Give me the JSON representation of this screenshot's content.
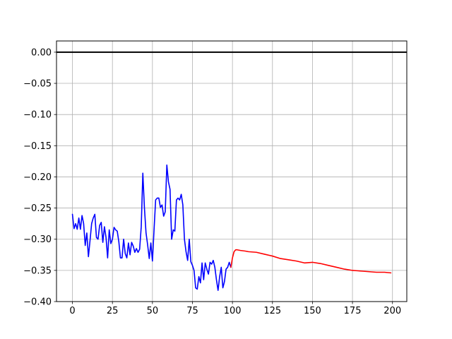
{
  "chart_data": {
    "type": "line",
    "title": "",
    "xlabel": "",
    "ylabel": "",
    "xlim": [
      -9.95,
      208.95
    ],
    "ylim": [
      -0.4,
      0.018
    ],
    "xticks": [
      0,
      25,
      50,
      75,
      100,
      125,
      150,
      175,
      200
    ],
    "xtick_labels": [
      "0",
      "25",
      "50",
      "75",
      "100",
      "125",
      "150",
      "175",
      "200"
    ],
    "yticks": [
      0.0,
      -0.05,
      -0.1,
      -0.15,
      -0.2,
      -0.25,
      -0.3,
      -0.35,
      -0.4
    ],
    "ytick_labels": [
      "0.00",
      "−0.05",
      "−0.10",
      "−0.15",
      "−0.20",
      "−0.25",
      "−0.30",
      "−0.35",
      "−0.40"
    ],
    "grid": true,
    "legend": null,
    "reference_line": {
      "y": 0,
      "color": "#000000"
    },
    "series": [
      {
        "color": "#0000ff",
        "x": [
          0,
          1,
          2,
          3,
          4,
          5,
          6,
          7,
          8,
          9,
          10,
          11,
          12,
          13,
          14,
          15,
          16,
          17,
          18,
          19,
          20,
          21,
          22,
          23,
          24,
          25,
          26,
          27,
          28,
          29,
          30,
          31,
          32,
          33,
          34,
          35,
          36,
          37,
          38,
          39,
          40,
          41,
          42,
          43,
          44,
          45,
          46,
          47,
          48,
          49,
          50,
          51,
          52,
          53,
          54,
          55,
          56,
          57,
          58,
          59,
          60,
          61,
          62,
          63,
          64,
          65,
          66,
          67,
          68,
          69,
          70,
          71,
          72,
          73,
          74,
          75,
          76,
          77,
          78,
          79,
          80,
          81,
          82,
          83,
          84,
          85,
          86,
          87,
          88,
          89,
          90,
          91,
          92,
          93,
          94,
          95,
          96,
          97,
          98,
          99
        ],
        "y": [
          -0.26,
          -0.283,
          -0.275,
          -0.284,
          -0.266,
          -0.284,
          -0.262,
          -0.275,
          -0.31,
          -0.29,
          -0.328,
          -0.302,
          -0.275,
          -0.266,
          -0.26,
          -0.297,
          -0.3,
          -0.278,
          -0.273,
          -0.305,
          -0.28,
          -0.297,
          -0.33,
          -0.285,
          -0.307,
          -0.3,
          -0.281,
          -0.285,
          -0.287,
          -0.304,
          -0.33,
          -0.33,
          -0.3,
          -0.323,
          -0.33,
          -0.306,
          -0.325,
          -0.305,
          -0.311,
          -0.321,
          -0.315,
          -0.321,
          -0.316,
          -0.28,
          -0.194,
          -0.25,
          -0.29,
          -0.309,
          -0.331,
          -0.306,
          -0.335,
          -0.285,
          -0.237,
          -0.234,
          -0.234,
          -0.249,
          -0.245,
          -0.263,
          -0.256,
          -0.181,
          -0.208,
          -0.22,
          -0.3,
          -0.285,
          -0.287,
          -0.237,
          -0.234,
          -0.237,
          -0.228,
          -0.245,
          -0.3,
          -0.32,
          -0.334,
          -0.3,
          -0.336,
          -0.342,
          -0.35,
          -0.378,
          -0.38,
          -0.36,
          -0.37,
          -0.338,
          -0.365,
          -0.338,
          -0.348,
          -0.356,
          -0.337,
          -0.34,
          -0.334,
          -0.345,
          -0.365,
          -0.382,
          -0.36,
          -0.345,
          -0.378,
          -0.368,
          -0.348,
          -0.345,
          -0.337,
          -0.345
        ]
      },
      {
        "color": "#ff0000",
        "x": [
          99,
          100,
          101,
          102,
          103,
          105,
          108,
          110,
          115,
          120,
          125,
          130,
          135,
          140,
          145,
          150,
          155,
          160,
          165,
          170,
          175,
          180,
          185,
          190,
          195,
          199
        ],
        "y": [
          -0.345,
          -0.33,
          -0.32,
          -0.317,
          -0.317,
          -0.318,
          -0.319,
          -0.32,
          -0.321,
          -0.324,
          -0.327,
          -0.331,
          -0.333,
          -0.335,
          -0.338,
          -0.337,
          -0.339,
          -0.342,
          -0.345,
          -0.348,
          -0.35,
          -0.351,
          -0.352,
          -0.353,
          -0.353,
          -0.354
        ]
      }
    ]
  }
}
